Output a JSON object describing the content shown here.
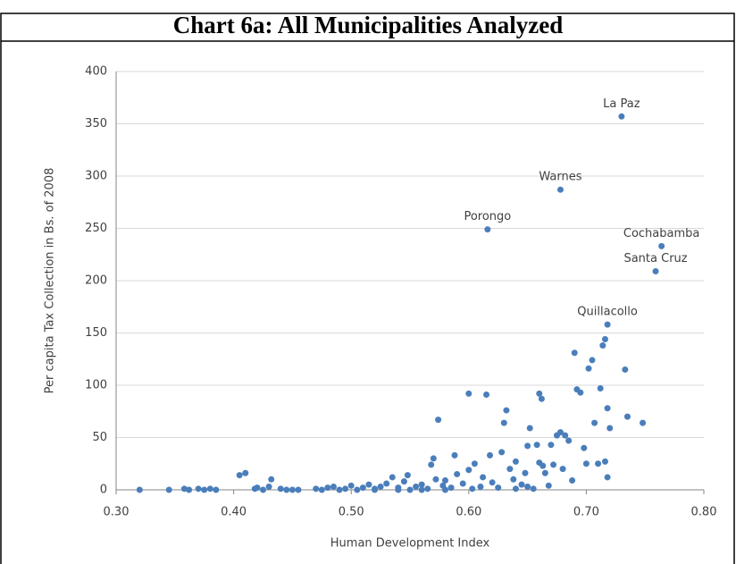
{
  "chart_data": {
    "type": "scatter",
    "title": "Chart 6a: All Municipalities Analyzed",
    "x_label": "Human Development Index",
    "y_label": "Per capita Tax Collection in Bs. of 2008",
    "xlim": [
      0.3,
      0.8
    ],
    "xticks": [
      {
        "value": 0.3,
        "label": "0.30"
      },
      {
        "value": 0.4,
        "label": "0.40"
      },
      {
        "value": 0.5,
        "label": "0.50"
      },
      {
        "value": 0.6,
        "label": "0.60"
      },
      {
        "value": 0.7,
        "label": "0.70"
      },
      {
        "value": 0.8,
        "label": "0.80"
      }
    ],
    "ylim": [
      0,
      400
    ],
    "yticks": [
      0,
      50,
      100,
      150,
      200,
      250,
      300,
      350,
      400
    ],
    "grid": true,
    "color": "#4a7ebb",
    "x": [
      0.32,
      0.345,
      0.358,
      0.362,
      0.37,
      0.375,
      0.38,
      0.385,
      0.405,
      0.41,
      0.418,
      0.42,
      0.425,
      0.43,
      0.432,
      0.44,
      0.445,
      0.45,
      0.455,
      0.47,
      0.475,
      0.48,
      0.485,
      0.49,
      0.495,
      0.5,
      0.505,
      0.51,
      0.515,
      0.52,
      0.525,
      0.53,
      0.535,
      0.54,
      0.545,
      0.548,
      0.55,
      0.555,
      0.56,
      0.565,
      0.568,
      0.57,
      0.572,
      0.574,
      0.578,
      0.58,
      0.585,
      0.588,
      0.59,
      0.595,
      0.6,
      0.6,
      0.603,
      0.605,
      0.61,
      0.612,
      0.615,
      0.618,
      0.62,
      0.625,
      0.628,
      0.63,
      0.632,
      0.635,
      0.638,
      0.64,
      0.645,
      0.648,
      0.65,
      0.652,
      0.655,
      0.658,
      0.66,
      0.662,
      0.663,
      0.665,
      0.668,
      0.67,
      0.672,
      0.675,
      0.678,
      0.68,
      0.682,
      0.685,
      0.688,
      0.69,
      0.692,
      0.695,
      0.698,
      0.7,
      0.702,
      0.705,
      0.707,
      0.71,
      0.712,
      0.714,
      0.716,
      0.718,
      0.72,
      0.718,
      0.716,
      0.733,
      0.735,
      0.748,
      0.66,
      0.65,
      0.64,
      0.58,
      0.56,
      0.54,
      0.52
    ],
    "values": [
      0,
      0,
      1,
      0,
      1,
      0,
      1,
      0,
      14,
      16,
      1,
      2,
      0,
      3,
      10,
      1,
      0,
      0,
      0,
      1,
      0,
      2,
      3,
      0,
      1,
      4,
      0,
      2,
      5,
      1,
      3,
      6,
      12,
      2,
      8,
      14,
      0,
      3,
      5,
      1,
      24,
      30,
      10,
      67,
      4,
      9,
      2,
      33,
      15,
      6,
      92,
      19,
      1,
      25,
      3,
      12,
      91,
      33,
      7,
      2,
      36,
      64,
      76,
      20,
      10,
      27,
      5,
      16,
      42,
      59,
      1,
      43,
      92,
      87,
      23,
      16,
      4,
      43,
      24,
      52,
      55,
      20,
      52,
      47,
      9,
      131,
      96,
      93,
      40,
      25,
      116,
      124,
      64,
      25,
      97,
      138,
      144,
      78,
      59,
      12,
      27,
      115,
      70,
      64,
      26,
      3,
      1,
      0,
      0,
      0,
      0
    ],
    "annotations": [
      {
        "text": "La Paz",
        "x": 0.73,
        "y": 357
      },
      {
        "text": "Warnes",
        "x": 0.678,
        "y": 287
      },
      {
        "text": "Porongo",
        "x": 0.616,
        "y": 249
      },
      {
        "text": "Cochabamba",
        "x": 0.764,
        "y": 233
      },
      {
        "text": "Santa Cruz",
        "x": 0.759,
        "y": 209
      },
      {
        "text": "Quillacollo",
        "x": 0.718,
        "y": 158
      }
    ]
  }
}
